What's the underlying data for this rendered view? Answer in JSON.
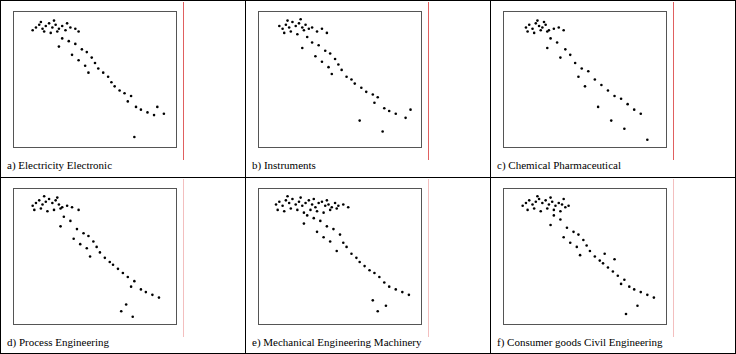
{
  "chart_data": [
    {
      "type": "scatter",
      "title": "a) Electricity Electronic",
      "color": "#000000",
      "marker": "circle",
      "grid": false,
      "tick_labels": false,
      "xlim": [
        0,
        100
      ],
      "ylim": [
        0,
        100
      ],
      "x": [
        14,
        16,
        18,
        20,
        22,
        24,
        26,
        28,
        30,
        19,
        23,
        27,
        32,
        35,
        38,
        12,
        17,
        25,
        33,
        40,
        30,
        34,
        38,
        28,
        42,
        45,
        36,
        48,
        40,
        44,
        50,
        52,
        46,
        55,
        58,
        60,
        62,
        65,
        68,
        72,
        70,
        75,
        78,
        82,
        86,
        88,
        92,
        74
      ],
      "values": [
        88,
        90,
        87,
        89,
        91,
        88,
        90,
        87,
        89,
        85,
        84,
        85,
        86,
        88,
        87,
        86,
        92,
        93,
        91,
        85,
        80,
        78,
        76,
        74,
        72,
        70,
        68,
        66,
        64,
        60,
        62,
        58,
        55,
        55,
        52,
        48,
        45,
        42,
        40,
        38,
        34,
        30,
        28,
        26,
        24,
        30,
        25,
        8
      ]
    },
    {
      "type": "scatter",
      "title": "b) Instruments",
      "color": "#000000",
      "marker": "circle",
      "grid": false,
      "tick_labels": false,
      "xlim": [
        0,
        100
      ],
      "ylim": [
        0,
        100
      ],
      "x": [
        13,
        15,
        17,
        19,
        21,
        23,
        25,
        27,
        29,
        31,
        16,
        20,
        24,
        28,
        33,
        36,
        39,
        42,
        18,
        26,
        30,
        33,
        37,
        27,
        41,
        44,
        35,
        47,
        39,
        43,
        49,
        51,
        45,
        54,
        57,
        59,
        63,
        66,
        70,
        73,
        71,
        77,
        80,
        84,
        90,
        93,
        62,
        76
      ],
      "values": [
        89,
        87,
        90,
        88,
        92,
        89,
        91,
        88,
        90,
        87,
        84,
        85,
        83,
        86,
        88,
        85,
        87,
        84,
        93,
        94,
        81,
        77,
        75,
        73,
        71,
        69,
        67,
        65,
        63,
        59,
        61,
        57,
        54,
        52,
        50,
        47,
        44,
        41,
        39,
        37,
        33,
        29,
        27,
        25,
        22,
        28,
        20,
        12
      ]
    },
    {
      "type": "scatter",
      "title": "c) Chemical Pharmaceutical",
      "color": "#000000",
      "marker": "circle",
      "grid": false,
      "tick_labels": false,
      "xlim": [
        0,
        100
      ],
      "ylim": [
        0,
        100
      ],
      "x": [
        14,
        16,
        18,
        20,
        22,
        24,
        26,
        28,
        15,
        19,
        23,
        27,
        31,
        34,
        37,
        21,
        25,
        29,
        33,
        27,
        38,
        41,
        35,
        44,
        48,
        52,
        46,
        56,
        60,
        64,
        68,
        72,
        76,
        80,
        84,
        58,
        66,
        88,
        50,
        74
      ],
      "values": [
        88,
        90,
        87,
        91,
        89,
        88,
        90,
        86,
        85,
        84,
        86,
        85,
        87,
        88,
        86,
        93,
        92,
        80,
        77,
        73,
        72,
        68,
        66,
        62,
        58,
        56,
        52,
        50,
        46,
        42,
        38,
        36,
        32,
        28,
        25,
        30,
        20,
        6,
        45,
        14
      ]
    },
    {
      "type": "scatter",
      "title": "d) Process Engineering",
      "color": "#000000",
      "marker": "circle",
      "grid": false,
      "tick_labels": false,
      "xlim": [
        0,
        100
      ],
      "ylim": [
        0,
        100
      ],
      "x": [
        12,
        14,
        16,
        18,
        20,
        22,
        24,
        26,
        28,
        30,
        13,
        17,
        21,
        25,
        29,
        33,
        36,
        40,
        19,
        27,
        31,
        35,
        29,
        39,
        43,
        46,
        37,
        49,
        41,
        45,
        51,
        53,
        47,
        56,
        59,
        61,
        64,
        67,
        70,
        74,
        72,
        78,
        81,
        85,
        89,
        69,
        66,
        73
      ],
      "values": [
        87,
        89,
        91,
        88,
        90,
        92,
        89,
        91,
        88,
        86,
        84,
        85,
        83,
        84,
        85,
        87,
        86,
        84,
        94,
        93,
        79,
        76,
        72,
        70,
        67,
        65,
        63,
        61,
        59,
        56,
        57,
        53,
        50,
        49,
        46,
        44,
        41,
        38,
        35,
        32,
        28,
        26,
        24,
        22,
        20,
        15,
        10,
        6
      ]
    },
    {
      "type": "scatter",
      "title": "e) Mechanical Engineering Machinery",
      "color": "#000000",
      "marker": "circle",
      "grid": false,
      "tick_labels": false,
      "xlim": [
        0,
        100
      ],
      "ylim": [
        0,
        100
      ],
      "x": [
        11,
        13,
        15,
        17,
        19,
        21,
        23,
        25,
        27,
        29,
        31,
        33,
        35,
        37,
        39,
        41,
        43,
        45,
        47,
        49,
        12,
        16,
        20,
        24,
        28,
        32,
        36,
        40,
        44,
        48,
        52,
        55,
        18,
        26,
        34,
        42,
        30,
        34,
        38,
        28,
        42,
        46,
        36,
        50,
        40,
        44,
        52,
        54,
        48,
        57,
        60,
        62,
        65,
        68,
        71,
        74,
        77,
        80,
        84,
        88,
        92,
        70,
        78,
        73
      ],
      "values": [
        88,
        90,
        87,
        91,
        89,
        92,
        88,
        90,
        87,
        89,
        91,
        88,
        86,
        89,
        90,
        87,
        88,
        86,
        89,
        87,
        84,
        83,
        85,
        84,
        82,
        84,
        83,
        82,
        84,
        85,
        88,
        86,
        94,
        93,
        92,
        91,
        80,
        78,
        76,
        74,
        72,
        70,
        68,
        66,
        64,
        61,
        60,
        57,
        54,
        52,
        49,
        46,
        43,
        40,
        38,
        35,
        31,
        28,
        26,
        24,
        22,
        18,
        14,
        10
      ]
    },
    {
      "type": "scatter",
      "title": "f) Consumer goods Civil Engineering",
      "color": "#000000",
      "marker": "circle",
      "grid": false,
      "tick_labels": false,
      "xlim": [
        0,
        100
      ],
      "ylim": [
        0,
        100
      ],
      "x": [
        12,
        14,
        16,
        18,
        20,
        22,
        24,
        26,
        28,
        30,
        32,
        34,
        36,
        38,
        40,
        15,
        19,
        23,
        27,
        31,
        35,
        21,
        29,
        37,
        31,
        35,
        29,
        39,
        43,
        46,
        37,
        49,
        41,
        45,
        51,
        53,
        47,
        56,
        59,
        61,
        64,
        67,
        70,
        74,
        72,
        77,
        80,
        84,
        88,
        92,
        62,
        68,
        75,
        82
      ],
      "values": [
        87,
        89,
        91,
        88,
        90,
        92,
        89,
        91,
        88,
        90,
        87,
        89,
        88,
        86,
        87,
        84,
        85,
        83,
        85,
        84,
        83,
        94,
        93,
        92,
        80,
        77,
        73,
        71,
        68,
        66,
        64,
        62,
        60,
        57,
        58,
        54,
        51,
        50,
        47,
        45,
        42,
        39,
        36,
        33,
        30,
        28,
        26,
        24,
        22,
        20,
        52,
        48,
        8,
        14
      ]
    }
  ]
}
